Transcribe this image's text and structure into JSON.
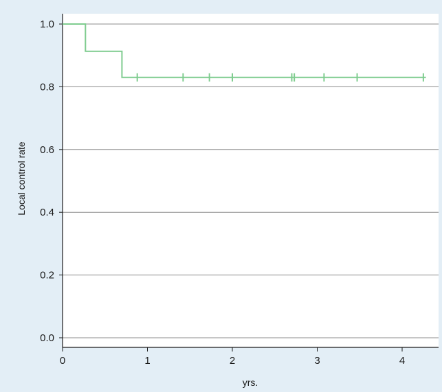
{
  "chart_data": {
    "type": "line",
    "title": "",
    "xlabel": "yrs.",
    "ylabel": "Local control rate",
    "xlim": [
      0,
      4.4
    ],
    "ylim": [
      0.0,
      1.0
    ],
    "x_ticks": [
      0,
      1,
      2,
      3,
      4
    ],
    "x_tick_labels": [
      "0",
      "1",
      "2",
      "3",
      "4"
    ],
    "y_ticks": [
      0.0,
      0.2,
      0.4,
      0.6,
      0.8,
      1.0
    ],
    "y_tick_labels": [
      "0.0",
      "0.2",
      "0.4",
      "0.6",
      "0.8",
      "1.0"
    ],
    "grid": "horizontal",
    "legend": "none",
    "series": [
      {
        "step_x": [
          0,
          0.27,
          0.27,
          0.7,
          0.7,
          4.28
        ],
        "step_y": [
          1.0,
          1.0,
          0.913,
          0.913,
          0.83,
          0.83
        ],
        "censor_x": [
          0.88,
          1.42,
          1.73,
          2.0,
          2.7,
          2.73,
          3.08,
          3.47,
          4.25
        ],
        "censor_y": 0.83,
        "color": "#7fcc8f"
      }
    ],
    "colors": {
      "background": "#e3eef6",
      "plot_background": "#ffffff",
      "gridline": "#8c8c8c",
      "axis": "#1a1a1a"
    }
  }
}
